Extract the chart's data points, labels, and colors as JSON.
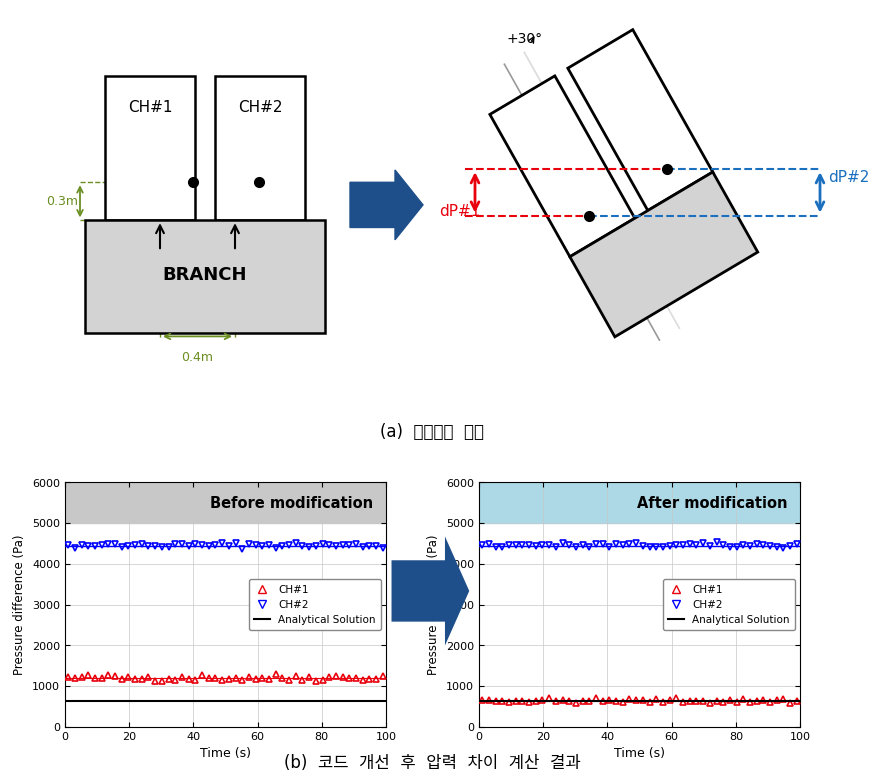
{
  "title_a": "(a)  개념문제  정의",
  "title_b": "(b)  코드  개선  후  압력  차이  계산  결과",
  "before_title": "Before modification",
  "after_title": "After modification",
  "xlabel": "Time (s)",
  "ylabel": "Pressure difference (Pa)",
  "xlim": [
    0,
    100
  ],
  "ylim": [
    0,
    6000
  ],
  "yticks": [
    0,
    1000,
    2000,
    3000,
    4000,
    5000,
    6000
  ],
  "xticks": [
    0,
    20,
    40,
    60,
    80,
    100
  ],
  "before_ch1_value": 1200,
  "before_ch2_value": 4450,
  "before_analytical": 620,
  "after_ch1_value": 635,
  "after_ch2_value": 4450,
  "after_analytical": 620,
  "ch1_color": "#e8000d",
  "ch2_color": "#0000ff",
  "analytical_color": "#000000",
  "before_bg": "#c8c8c8",
  "after_bg": "#add8e6",
  "label_ch1": "CH#1",
  "label_ch2": "CH#2",
  "label_analytical": "Analytical Solution",
  "dP1_color": "#e8000d",
  "dP2_color": "#1a6fbf",
  "dim_color": "#6b8e23",
  "branch_label": "BRANCH",
  "ch1_label": "CH#1",
  "ch2_label": "CH#2",
  "dim_03": "0.3m",
  "dim_04": "0.4m",
  "angle_label": "+30°",
  "dp1_label": "dP#1",
  "dp2_label": "dP#2"
}
